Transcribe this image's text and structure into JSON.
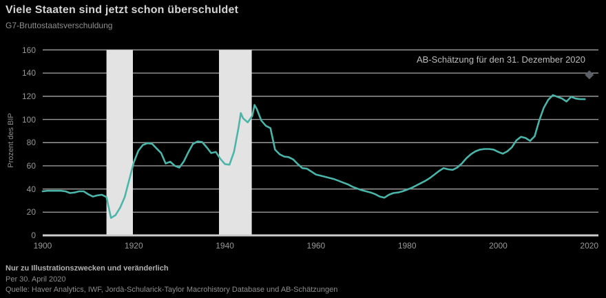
{
  "header": {
    "title": "Viele Staaten sind jetzt schon überschuldet",
    "subtitle": "G7-Bruttostaatsverschuldung"
  },
  "footer": {
    "disclaimer": "Nur zu Illustrationszwecken und veränderlich",
    "as_of": "Per 30. April 2020",
    "source": "Quelle: Haver Analytics, IWF, Jordà-Schularick-Taylor Macrohistory Database und AB-Schätzungen"
  },
  "chart_data": {
    "type": "line",
    "title": "Viele Staaten sind jetzt schon überschuldet",
    "subtitle": "G7-Bruttostaatsverschuldung",
    "xlabel": "",
    "ylabel": "Prozent des BIP",
    "ylim": [
      0,
      160
    ],
    "xlim": [
      1900,
      2022
    ],
    "y_ticks": [
      0,
      20,
      40,
      60,
      80,
      100,
      120,
      140,
      160
    ],
    "x_ticks": [
      1900,
      1920,
      1940,
      1960,
      1980,
      2000,
      2020
    ],
    "grid": "horizontal",
    "legend": "none",
    "annotation": "AB-Schätzung für den 31. Dezember 2020",
    "colors": {
      "background": "#000000",
      "line": "#4ab5a8",
      "band": "#e3e3e3",
      "gridline": "#9a9a9a",
      "axis_line": "#cdcdcd",
      "diamond": "#5d5f66"
    },
    "bands": [
      {
        "from": 1914.0,
        "to": 1919.8
      },
      {
        "from": 1938.7,
        "to": 1945.9
      }
    ],
    "series": [
      {
        "name": "G7-Bruttostaatsverschuldung (Prozent des BIP)",
        "points": [
          [
            1900,
            38
          ],
          [
            1901,
            38.5
          ],
          [
            1902,
            38.5
          ],
          [
            1903,
            38.5
          ],
          [
            1904,
            38.5
          ],
          [
            1905,
            38
          ],
          [
            1906,
            36.5
          ],
          [
            1907,
            37
          ],
          [
            1908,
            38
          ],
          [
            1909,
            38
          ],
          [
            1910,
            35.5
          ],
          [
            1911,
            33.5
          ],
          [
            1912,
            34.5
          ],
          [
            1913,
            35
          ],
          [
            1914,
            33
          ],
          [
            1915,
            15
          ],
          [
            1916,
            17.5
          ],
          [
            1917,
            24
          ],
          [
            1918,
            33
          ],
          [
            1919,
            48
          ],
          [
            1920,
            63
          ],
          [
            1921,
            73
          ],
          [
            1922,
            78
          ],
          [
            1923,
            79.5
          ],
          [
            1924,
            79
          ],
          [
            1925,
            75
          ],
          [
            1926,
            71
          ],
          [
            1927,
            62
          ],
          [
            1928,
            63.5
          ],
          [
            1929,
            60
          ],
          [
            1930,
            58.5
          ],
          [
            1931,
            64
          ],
          [
            1932,
            72
          ],
          [
            1933,
            79
          ],
          [
            1934,
            81
          ],
          [
            1935,
            80.5
          ],
          [
            1936,
            76
          ],
          [
            1937,
            71
          ],
          [
            1938,
            72
          ],
          [
            1939,
            66
          ],
          [
            1940,
            61.5
          ],
          [
            1941,
            61
          ],
          [
            1942,
            72
          ],
          [
            1943,
            93
          ],
          [
            1943.5,
            105.5
          ],
          [
            1944,
            101
          ],
          [
            1945,
            97.5
          ],
          [
            1946,
            103
          ],
          [
            1946.5,
            112.5
          ],
          [
            1947,
            109
          ],
          [
            1948,
            99
          ],
          [
            1949,
            94.5
          ],
          [
            1950,
            92.5
          ],
          [
            1951,
            74
          ],
          [
            1952,
            70
          ],
          [
            1953,
            68
          ],
          [
            1954,
            67.5
          ],
          [
            1955,
            65.5
          ],
          [
            1956,
            61.5
          ],
          [
            1957,
            58
          ],
          [
            1958,
            57.5
          ],
          [
            1959,
            55
          ],
          [
            1960,
            52.5
          ],
          [
            1961,
            51.5
          ],
          [
            1962,
            50.5
          ],
          [
            1963,
            49.5
          ],
          [
            1964,
            48.5
          ],
          [
            1965,
            47
          ],
          [
            1966,
            45.5
          ],
          [
            1967,
            44
          ],
          [
            1968,
            42
          ],
          [
            1969,
            40.5
          ],
          [
            1970,
            39
          ],
          [
            1971,
            38
          ],
          [
            1972,
            37
          ],
          [
            1973,
            35.5
          ],
          [
            1974,
            33.5
          ],
          [
            1975,
            32.5
          ],
          [
            1976,
            35
          ],
          [
            1977,
            36.5
          ],
          [
            1978,
            37
          ],
          [
            1979,
            38
          ],
          [
            1980,
            39.5
          ],
          [
            1981,
            41
          ],
          [
            1982,
            43
          ],
          [
            1983,
            45
          ],
          [
            1984,
            47
          ],
          [
            1985,
            49.5
          ],
          [
            1986,
            52.5
          ],
          [
            1987,
            55.5
          ],
          [
            1988,
            58
          ],
          [
            1989,
            57
          ],
          [
            1990,
            56.5
          ],
          [
            1991,
            58.5
          ],
          [
            1992,
            62
          ],
          [
            1993,
            66.5
          ],
          [
            1994,
            70
          ],
          [
            1995,
            72.5
          ],
          [
            1996,
            74
          ],
          [
            1997,
            74.5
          ],
          [
            1998,
            74.5
          ],
          [
            1999,
            74
          ],
          [
            2000,
            72
          ],
          [
            2001,
            70.5
          ],
          [
            2002,
            72.5
          ],
          [
            2003,
            76
          ],
          [
            2004,
            82
          ],
          [
            2005,
            85
          ],
          [
            2006,
            84
          ],
          [
            2007,
            81.5
          ],
          [
            2008,
            85.5
          ],
          [
            2009,
            99
          ],
          [
            2010,
            110
          ],
          [
            2011,
            117
          ],
          [
            2012,
            121
          ],
          [
            2013,
            119.5
          ],
          [
            2014,
            118
          ],
          [
            2015,
            115.5
          ],
          [
            2016,
            119.5
          ],
          [
            2017,
            118
          ],
          [
            2018,
            117.5
          ],
          [
            2019,
            117.5
          ]
        ]
      }
    ],
    "estimate_point": {
      "x": 2020,
      "y": 138.5,
      "marker": "diamond"
    }
  }
}
